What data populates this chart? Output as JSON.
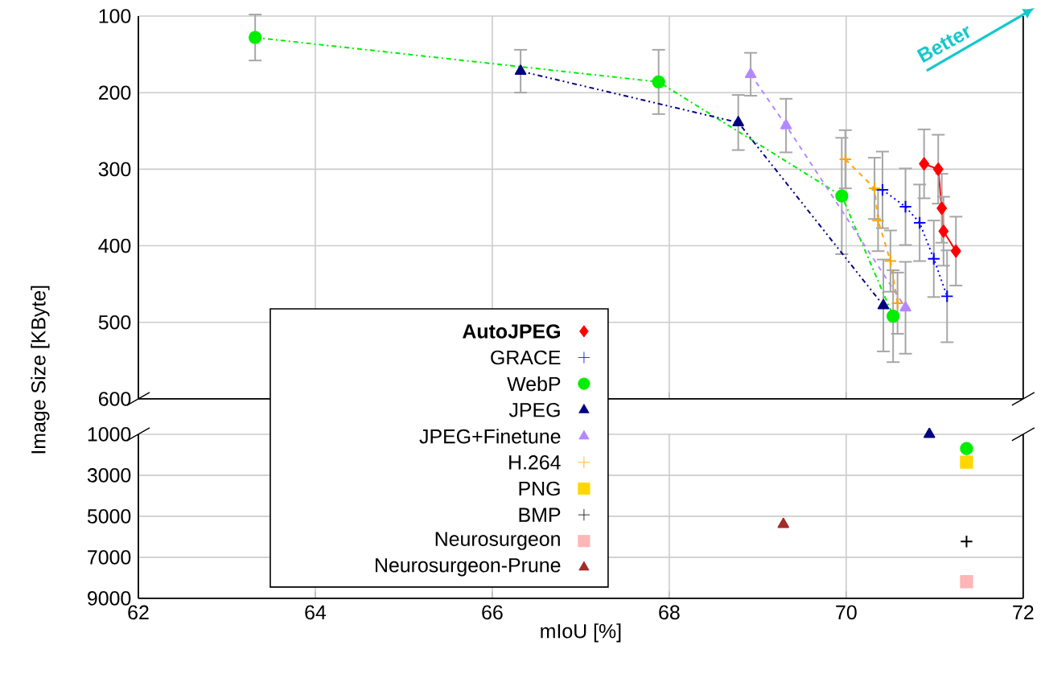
{
  "chart_data": [
    {
      "type": "line",
      "ylabel": "Image Size [KByte]",
      "xlim": [
        62,
        72
      ],
      "xticks": [
        62,
        64,
        66,
        68,
        70,
        72
      ],
      "ylim": [
        600,
        100
      ],
      "yticks": [
        100,
        200,
        300,
        400,
        500,
        600
      ],
      "grid": true,
      "tick_labels": "y",
      "legend": "bottom",
      "annotations": [
        "Better"
      ],
      "series": [
        {
          "name": "**AutoJPEG**",
          "color": "#ff0000",
          "marker": "diamond",
          "line_style": "solid",
          "x": [
            70.88,
            71.04,
            71.08,
            71.1,
            71.24
          ],
          "values": [
            293,
            300,
            351,
            381,
            407
          ],
          "errors": [
            45,
            45,
            45,
            45,
            45
          ]
        },
        {
          "name": "GRACE",
          "color": "#0000ff",
          "marker": "cross",
          "line_style": "dotted",
          "x": [
            70.41,
            70.67,
            70.83,
            70.99,
            71.14
          ],
          "values": [
            327,
            349,
            370,
            417,
            466
          ],
          "errors": [
            50,
            50,
            50,
            50,
            60
          ]
        },
        {
          "name": "WebP",
          "color": "#00ee00",
          "marker": "circle",
          "line_style": "dashdot",
          "x": [
            63.32,
            67.88,
            69.95,
            70.53
          ],
          "values": [
            128,
            186,
            335,
            492
          ],
          "errors": [
            30,
            42,
            76,
            60
          ]
        },
        {
          "name": "JPEG",
          "color": "#000080",
          "marker": "triangle",
          "line_style": "dashdotdot",
          "x": [
            66.32,
            68.78,
            70.42
          ],
          "values": [
            172,
            239,
            478
          ],
          "errors": [
            28,
            36,
            60
          ]
        },
        {
          "name": "JPEG+Finetune",
          "color": "#b388ff",
          "marker": "triangle",
          "line_style": "dashed",
          "x": [
            68.92,
            69.32,
            70.67
          ],
          "values": [
            176,
            243,
            481
          ],
          "errors": [
            28,
            35,
            60
          ]
        },
        {
          "name": "H.264",
          "color": "#ffa500",
          "marker": "cross",
          "line_style": "dashed",
          "x": [
            69.99,
            70.32,
            70.36,
            70.5,
            70.58
          ],
          "values": [
            287,
            325,
            367,
            420,
            475
          ],
          "errors": [
            38,
            40,
            40,
            40,
            40
          ]
        }
      ]
    },
    {
      "type": "scatter",
      "xlabel": "mIoU [%]",
      "xlim": [
        62,
        72
      ],
      "xticks": [
        62,
        64,
        66,
        68,
        70,
        72
      ],
      "ylim": [
        9000,
        1000
      ],
      "yticks": [
        1000,
        3000,
        5000,
        7000,
        9000
      ],
      "grid": true,
      "legend": "bottom",
      "series": [
        {
          "color": "#000080",
          "marker": "triangle",
          "x": [
            70.94
          ],
          "values": [
            1000
          ]
        },
        {
          "color": "#00ee00",
          "marker": "circle",
          "x": [
            71.36
          ],
          "values": [
            1700
          ]
        },
        {
          "name": "PNG",
          "color": "#ffd700",
          "marker": "square",
          "x": [
            71.36
          ],
          "values": [
            2360
          ]
        },
        {
          "name": "BMP",
          "color": "#000000",
          "marker": "cross",
          "x": [
            71.36
          ],
          "values": [
            6230
          ]
        },
        {
          "name": "Neurosurgeon",
          "color": "#ffb6b6",
          "marker": "square",
          "x": [
            71.36
          ],
          "values": [
            8190
          ]
        },
        {
          "name": "Neurosurgeon-Prune",
          "color": "#a52a2a",
          "marker": "triangle",
          "x": [
            69.29
          ],
          "values": [
            5390
          ]
        }
      ]
    }
  ]
}
